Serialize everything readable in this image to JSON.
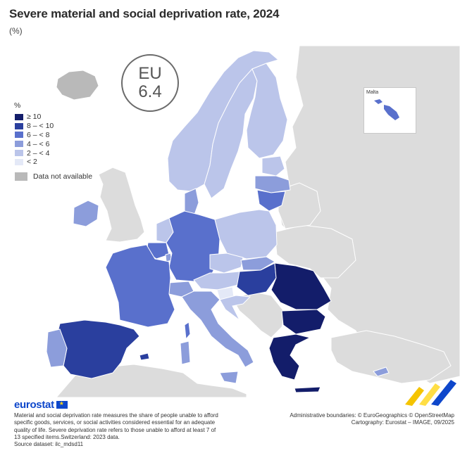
{
  "title": "Severe material and social deprivation rate, 2024",
  "subtitle": "(%)",
  "eu_badge": {
    "label": "EU",
    "value": "6.4"
  },
  "legend": {
    "title": "%",
    "classes": [
      {
        "label": "≥ 10",
        "color": "#131d6a"
      },
      {
        "label": "8 – < 10",
        "color": "#2a3f9e"
      },
      {
        "label": "6 – < 8",
        "color": "#5970cc"
      },
      {
        "label": "4 – < 6",
        "color": "#8c9ddb"
      },
      {
        "label": "2 – < 4",
        "color": "#bbc5ea"
      },
      {
        "label": "< 2",
        "color": "#e4e9f7"
      }
    ],
    "not_available": {
      "label": "Data not available",
      "color": "#b9b9b9"
    }
  },
  "inset": {
    "label": "Malta"
  },
  "map_regions": [
    {
      "name": "Iceland",
      "class": "na"
    },
    {
      "name": "Norway",
      "class": "2 – < 4"
    },
    {
      "name": "Sweden",
      "class": "2 – < 4"
    },
    {
      "name": "Finland",
      "class": "2 – < 4"
    },
    {
      "name": "Estonia",
      "class": "2 – < 4"
    },
    {
      "name": "Latvia",
      "class": "4 – < 6"
    },
    {
      "name": "Lithuania",
      "class": "6 – < 8"
    },
    {
      "name": "Ireland",
      "class": "4 – < 6"
    },
    {
      "name": "Denmark",
      "class": "4 – < 6"
    },
    {
      "name": "Netherlands",
      "class": "2 – < 4"
    },
    {
      "name": "Belgium",
      "class": "6 – < 8"
    },
    {
      "name": "Luxembourg",
      "class": "4 – < 6"
    },
    {
      "name": "Germany",
      "class": "6 – < 8"
    },
    {
      "name": "Poland",
      "class": "2 – < 4"
    },
    {
      "name": "France",
      "class": "6 – < 8"
    },
    {
      "name": "Czechia",
      "class": "2 – < 4"
    },
    {
      "name": "Slovakia",
      "class": "4 – < 6"
    },
    {
      "name": "Austria",
      "class": "2 – < 4"
    },
    {
      "name": "Switzerland",
      "class": "4 – < 6"
    },
    {
      "name": "Slovenia",
      "class": "< 2"
    },
    {
      "name": "Hungary",
      "class": "8 – < 10"
    },
    {
      "name": "Croatia",
      "class": "2 – < 4"
    },
    {
      "name": "Romania",
      "class": "≥ 10"
    },
    {
      "name": "Bulgaria",
      "class": "≥ 10"
    },
    {
      "name": "Greece",
      "class": "≥ 10"
    },
    {
      "name": "Italy",
      "class": "4 – < 6"
    },
    {
      "name": "Spain",
      "class": "8 – < 10"
    },
    {
      "name": "Portugal",
      "class": "4 – < 6"
    },
    {
      "name": "Cyprus",
      "class": "4 – < 6"
    },
    {
      "name": "Malta",
      "class": "6 – < 8"
    }
  ],
  "footer": {
    "logo": "eurostat",
    "note": "Material and social deprivation rate measures the share of people unable to afford specific goods, services, or social activities considered essential for an adequate quality of life. Severe deprivation rate refers to those unable to afford at least 7 of 13 specified items.Switzerland: 2023 data.",
    "source": "Source dataset: ilc_mdsd11",
    "boundaries": "Administrative boundaries: © EuroGeographics © OpenStreetMap",
    "cartography": "Cartography: Eurostat – IMAGE, 09/2025"
  },
  "colors": {
    "sea": "#ffffff",
    "non_eu_land": "#dcdcdc",
    "borders": "#ffffff"
  }
}
